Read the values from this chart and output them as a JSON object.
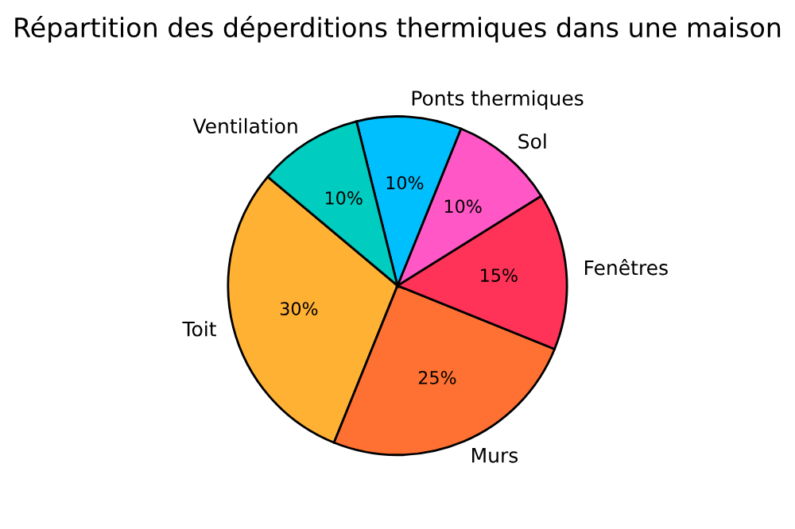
{
  "chart_data": {
    "type": "pie",
    "title": "Répartition des déperditions thermiques dans une maison",
    "categories": [
      "Toit",
      "Murs",
      "Fenêtres",
      "Sol",
      "Ponts thermiques",
      "Ventilation"
    ],
    "values": [
      30,
      25,
      15,
      10,
      10,
      10
    ],
    "value_labels": [
      "30%",
      "25%",
      "15%",
      "10%",
      "10%",
      "10%"
    ],
    "colors": [
      "#ffb133",
      "#ff7133",
      "#ff3358",
      "#ff57c5",
      "#00bfff",
      "#00ccc0"
    ]
  }
}
